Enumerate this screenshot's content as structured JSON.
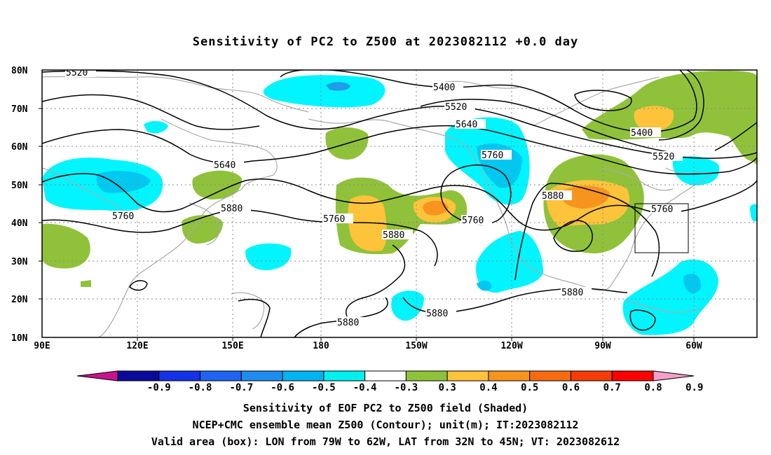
{
  "title": "Sensitivity of PC2 to Z500 at 2023082112 +0.0 day",
  "map": {
    "lat_labels": [
      "80N",
      "70N",
      "60N",
      "50N",
      "40N",
      "30N",
      "20N",
      "10N"
    ],
    "lon_labels": [
      "90E",
      "120E",
      "150E",
      "180",
      "150W",
      "120W",
      "90W",
      "60W"
    ],
    "shading_colors": {
      "positive_weak": "#8fc23a",
      "positive_mid": "#fdc33a",
      "positive_strong": "#f7941d",
      "negative_weak": "#00f5ff",
      "negative_mid": "#00c8f0",
      "negative_strong": "#1e9ee8",
      "coastline": "#aaaaaa",
      "contour": "#000000"
    },
    "contour_labels": {
      "c5520_nw": "5520",
      "c5400_n": "5400",
      "c5520_n": "5520",
      "c5640_n": "5640",
      "c5760_na": "5760",
      "c5880_na": "5880",
      "c5400_e": "5400",
      "c5520_e": "5520",
      "c5760_e": "5760",
      "c5640_w": "5640",
      "c5880_w": "5880",
      "c5760_w": "5760",
      "c5760_c": "5760",
      "c5880_c": "5880",
      "c5760_c2": "5760",
      "c5880_s": "5880",
      "c5880_se": "5880",
      "c5880_sw": "5880"
    },
    "valid_box": {
      "lon_from": "79W",
      "lon_to": "62W",
      "lat_from": "32N",
      "lat_to": "45N"
    }
  },
  "colorbar": {
    "labels": [
      "-0.9",
      "-0.8",
      "-0.7",
      "-0.6",
      "-0.5",
      "-0.4",
      "-0.3",
      "0.3",
      "0.4",
      "0.5",
      "0.6",
      "0.7",
      "0.8",
      "0.9"
    ],
    "colors": [
      "#0a0a9a",
      "#1432e6",
      "#1e64f0",
      "#1e8cf0",
      "#00b4f0",
      "#00f0f0",
      "#ffffff",
      "#8fc23a",
      "#fdc33a",
      "#f7941d",
      "#f76a10",
      "#f53c0a",
      "#ff0000"
    ],
    "left_arrow_color": "#c8148c",
    "right_arrow_color": "#f5a0c8"
  },
  "captions": [
    "Sensitivity of EOF PC2 to Z500 field (Shaded)",
    "NCEP+CMC ensemble mean Z500 (Contour); unit(m); IT:2023082112",
    "Valid area (box): LON from 79W to 62W, LAT from 32N to 45N; VT: 2023082612"
  ]
}
